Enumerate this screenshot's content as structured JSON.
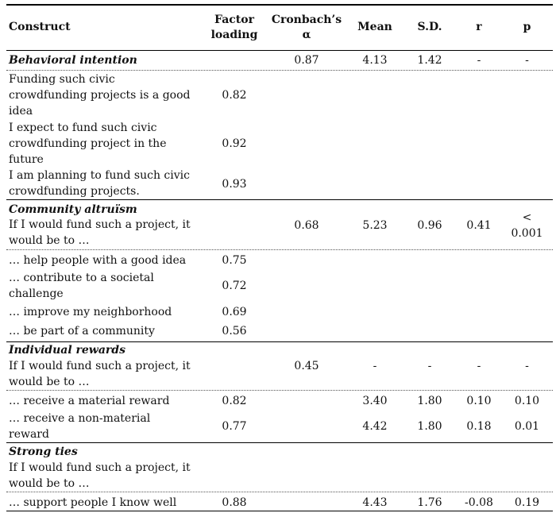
{
  "header": {
    "construct": "Construct",
    "factor_loading_1": "Factor",
    "factor_loading_2": "loading",
    "alpha_1": "Cronbach’s",
    "alpha_2": "α",
    "mean": "Mean",
    "sd": "S.D.",
    "r": "r",
    "p": "p"
  },
  "sections": {
    "behavioral": {
      "title": "Behavioral intention",
      "alpha": "0.87",
      "mean": "4.13",
      "sd": "1.42",
      "r": "-",
      "p": "-",
      "items": [
        {
          "l1": "Funding such civic",
          "l2": "crowdfunding projects is a good",
          "l3": "idea",
          "loading": "0.82"
        },
        {
          "l1": "I expect to fund such civic",
          "l2": "crowdfunding project in the",
          "l3": "future",
          "loading": "0.92"
        },
        {
          "l1": "I am planning to fund such civic",
          "l2": "crowdfunding projects.",
          "loading": "0.93"
        }
      ]
    },
    "community": {
      "title": "Community altruïsm",
      "stem_1": "If I would fund such a project, it",
      "stem_2": "would be to …",
      "alpha": "0.68",
      "mean": "5.23",
      "sd": "0.96",
      "r": "0.41",
      "p_1": "<",
      "p_2": "0.001",
      "items": [
        {
          "l1": "… help people with a good idea",
          "loading": "0.75"
        },
        {
          "l1": "… contribute to a societal",
          "l2": "challenge",
          "loading": "0.72"
        },
        {
          "l1": "… improve my neighborhood",
          "loading": "0.69"
        },
        {
          "l1": "… be part of a community",
          "loading": "0.56"
        }
      ]
    },
    "individual": {
      "title": "Individual rewards",
      "stem_1": "If I would fund such a project, it",
      "stem_2": "would be to …",
      "alpha": "0.45",
      "mean": "-",
      "sd": "-",
      "r": "-",
      "p": "-",
      "items": [
        {
          "l1": "… receive a material reward",
          "loading": "0.82",
          "mean": "3.40",
          "sd": "1.80",
          "r": "0.10",
          "p": "0.10"
        },
        {
          "l1": "… receive a non-material",
          "l2": "reward",
          "loading": "0.77",
          "mean": "4.42",
          "sd": "1.80",
          "r": "0.18",
          "p": "0.01"
        }
      ]
    },
    "strong": {
      "title": "Strong ties",
      "stem_1": "If I would fund such a project, it",
      "stem_2": "would be to …",
      "items": [
        {
          "l1": "… support people I know well",
          "loading": "0.88",
          "mean": "4.43",
          "sd": "1.76",
          "r": "-0.08",
          "p": "0.19"
        }
      ]
    }
  }
}
